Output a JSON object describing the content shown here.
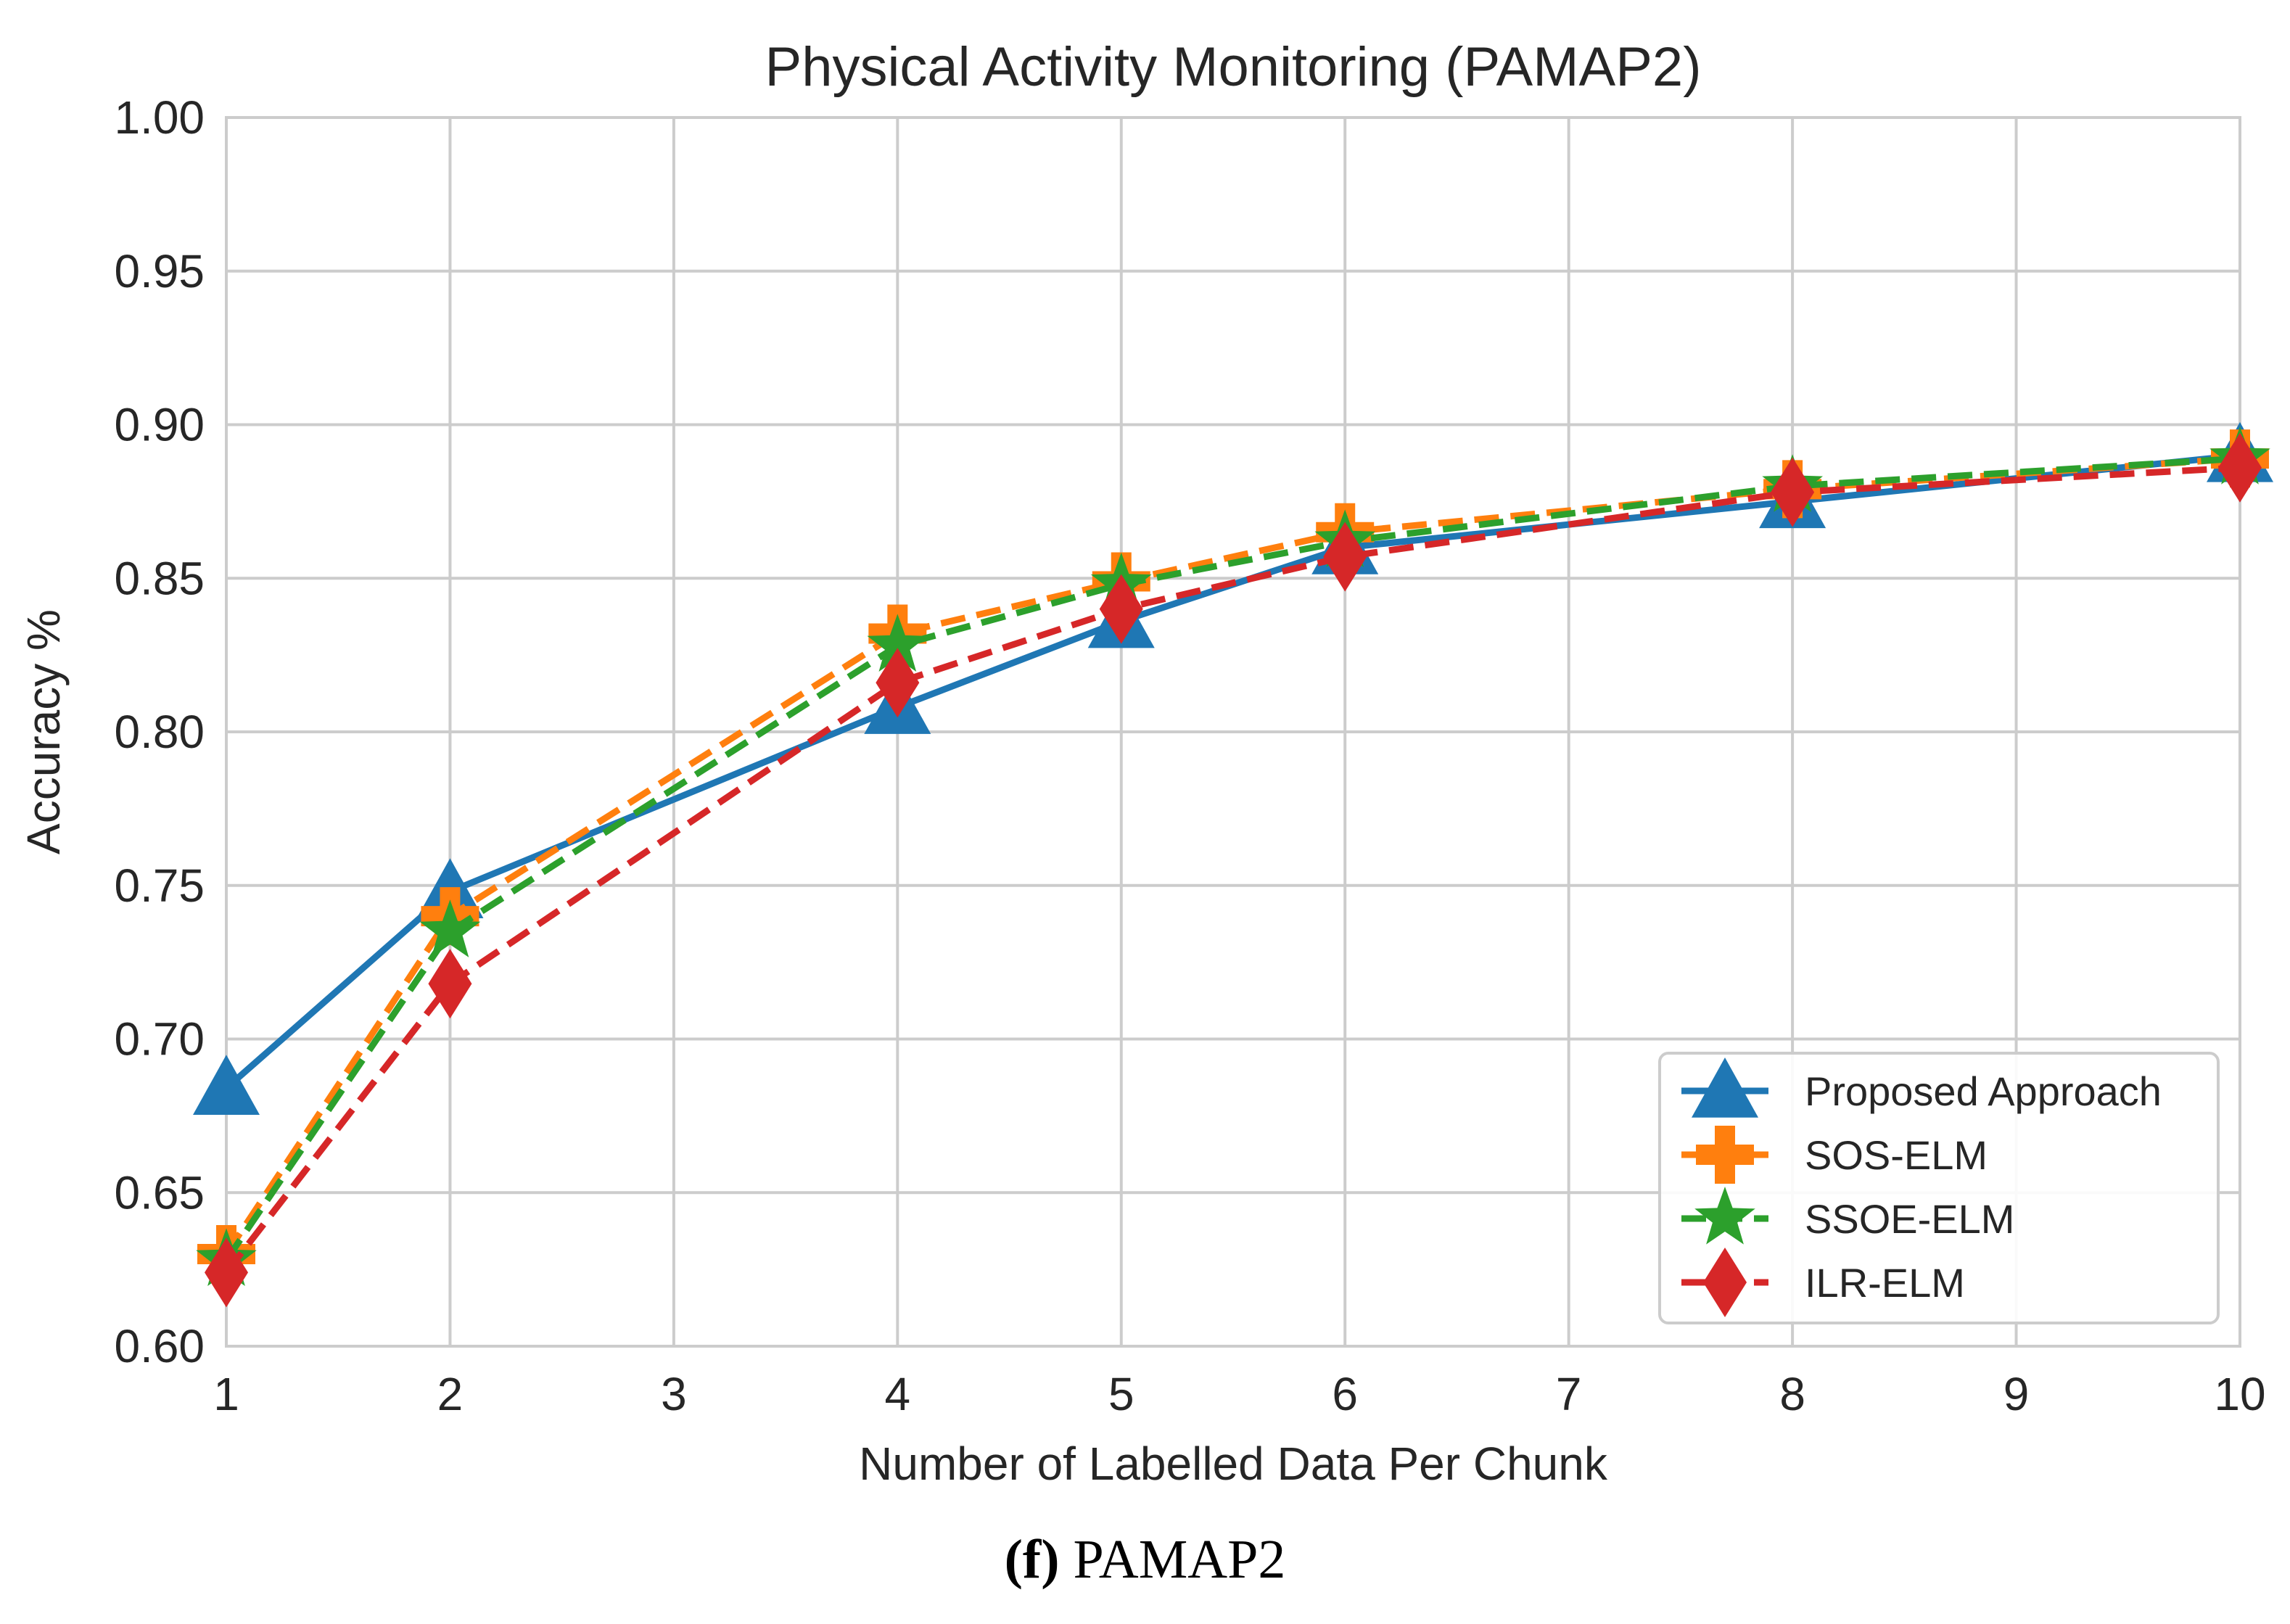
{
  "chart_data": {
    "type": "line",
    "title": "Physical Activity Monitoring (PAMAP2)",
    "xlabel": "Number of Labelled Data Per Chunk",
    "ylabel": "Accuracy %",
    "xlim": [
      1,
      10
    ],
    "ylim": [
      0.6,
      1.0
    ],
    "xticks": [
      "1",
      "2",
      "3",
      "4",
      "5",
      "6",
      "7",
      "8",
      "9",
      "10"
    ],
    "yticks": [
      "0.60",
      "0.65",
      "0.70",
      "0.75",
      "0.80",
      "0.85",
      "0.90",
      "0.95",
      "1.00"
    ],
    "grid": true,
    "legend_position": "bottom-right",
    "x": [
      1,
      2,
      4,
      5,
      6,
      8,
      10
    ],
    "series": [
      {
        "name": "Proposed Approach",
        "color": "#1f77b4",
        "line_style": "solid",
        "marker": "triangle-up",
        "values": [
          0.684,
          0.748,
          0.808,
          0.836,
          0.86,
          0.875,
          0.89
        ]
      },
      {
        "name": "SOS-ELM",
        "color": "#ff7f0e",
        "line_style": "dashed",
        "marker": "plus",
        "values": [
          0.63,
          0.74,
          0.832,
          0.849,
          0.865,
          0.879,
          0.889
        ]
      },
      {
        "name": "SSOE-ELM",
        "color": "#2ca02c",
        "line_style": "dashed",
        "marker": "star",
        "values": [
          0.628,
          0.735,
          0.828,
          0.848,
          0.862,
          0.88,
          0.889
        ]
      },
      {
        "name": "ILR-ELM",
        "color": "#d62728",
        "line_style": "dashed",
        "marker": "diamond",
        "values": [
          0.624,
          0.718,
          0.816,
          0.84,
          0.857,
          0.878,
          0.886
        ]
      }
    ]
  },
  "caption": {
    "letter": "(f)",
    "text": "PAMAP2"
  }
}
